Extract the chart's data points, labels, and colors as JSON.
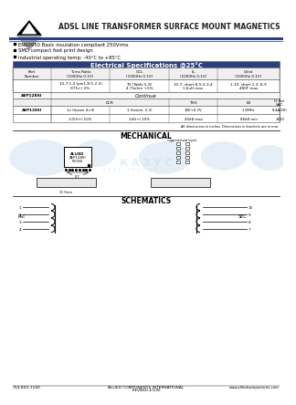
{
  "title": "ADSL LINE TRANSFORMER SURFACE MOUNT MAGNETICS",
  "part_number": "AEP128SI",
  "bullets": [
    "EN60950 Basic insulation compliant 250Vrms",
    "SMD compact foot print design",
    "Industrial operating temp: -40°C to +85°C"
  ],
  "table_header_bg": "#2a3f7e",
  "table_header_text": "Electrical Specifications @25°C",
  "col_headers": [
    "Part\nNumber",
    "Turns Ratio\n(1000Hz 0.1V)",
    "OCL\n(1000Hz 0.1V)",
    "LL\n(1000Hz 0.1V)",
    "Cdist\n(1000Hz 0.1V)"
  ],
  "row1a": [
    "",
    "10-7:1-4 (pin1-8:5-2-3)",
    "T3 (Table 5-9)",
    "10-7: short 8-5:2-3-4",
    "1-10: short 2-3: 8-9"
  ],
  "row1b": [
    "",
    "0.75+/-3%",
    "4.75ohm +5%",
    "1.6uH max",
    "480F max"
  ],
  "row2_part": "AEP128SI",
  "row2_continue": "Continue",
  "col_headers2_left": "DCR",
  "col_headers2": [
    "DCR",
    "",
    "THD",
    "LB",
    "Hi-Pot\nVAC"
  ],
  "row3": [
    "1x (fusion d=0)",
    "1 (fusion: 2-3)",
    "100+0.2V",
    "1.1MHz",
    "(14A/20)"
  ],
  "row4": [
    "1.15G+/-10%",
    "1.4G+/-10%",
    "40dB max",
    "88dB min",
    "1500"
  ],
  "note": "All dimensions in inches. Dimensions in brackets are in mm.",
  "mechanical_title": "MECHANICAL",
  "schematics_title": "SCHEMATICS",
  "footer_phone": "714-843-1140",
  "footer_company": "ALLIED COMPONENTS INTERNATIONAL",
  "footer_website": "www.alliedcomponents.com",
  "footer_note": "REVISED 4/1/06",
  "bg_color": "#ffffff",
  "header_line_color": "#2a3f7e",
  "logo_gray": "#aaaaaa",
  "watermark_color": "#c8ddf0"
}
